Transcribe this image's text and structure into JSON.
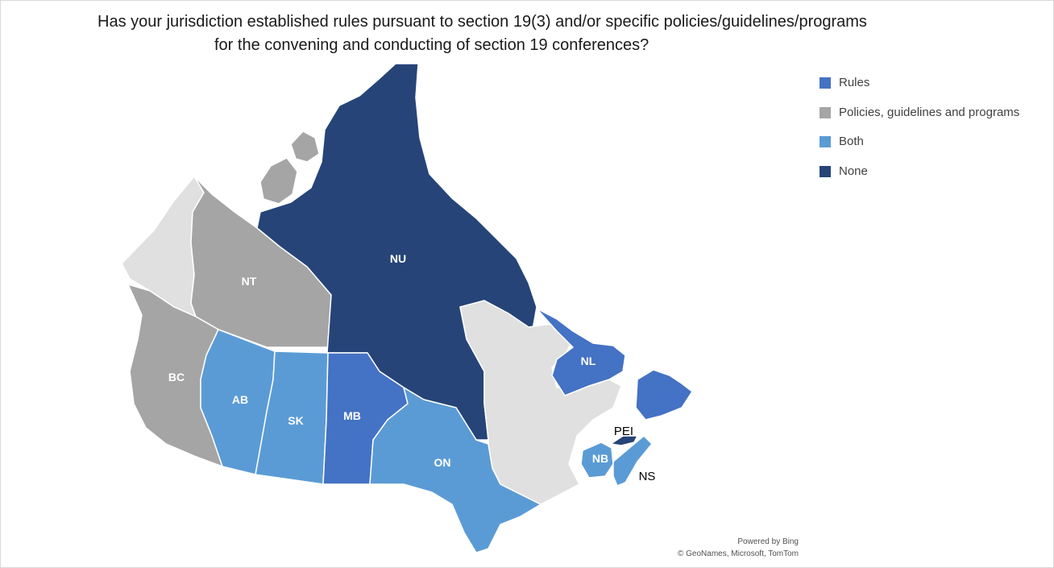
{
  "title": {
    "line1": "Has your jurisdiction established rules pursuant to section 19(3) and/or specific policies/guidelines/programs",
    "line2": "for the convening and conducting of section 19 conferences?"
  },
  "legend": [
    {
      "label": "Rules",
      "color": "#4472c4"
    },
    {
      "label": "Policies, guidelines and programs",
      "color": "#a5a5a5"
    },
    {
      "label": "Both",
      "color": "#5b9bd5"
    },
    {
      "label": "None",
      "color": "#264478"
    }
  ],
  "colors": {
    "no_data": "#e0e0e0"
  },
  "regions": {
    "NU": {
      "label": "NU",
      "category": "None"
    },
    "NT": {
      "label": "NT",
      "category": "Policies, guidelines and programs"
    },
    "BC": {
      "label": "BC",
      "category": "Policies, guidelines and programs"
    },
    "AB": {
      "label": "AB",
      "category": "Both"
    },
    "SK": {
      "label": "SK",
      "category": "Both"
    },
    "MB": {
      "label": "MB",
      "category": "Rules"
    },
    "ON": {
      "label": "ON",
      "category": "Both"
    },
    "NL": {
      "label": "NL",
      "category": "Rules"
    },
    "NB": {
      "label": "NB",
      "category": "Both"
    },
    "NS": {
      "label": "NS",
      "category": "Both"
    },
    "PEI": {
      "label": "PEI",
      "category": "None"
    },
    "YT": {
      "category": "no data"
    },
    "QC": {
      "category": "no data"
    }
  },
  "credit": {
    "line1": "Powered by Bing",
    "line2": "© GeoNames, Microsoft, TomTom"
  }
}
